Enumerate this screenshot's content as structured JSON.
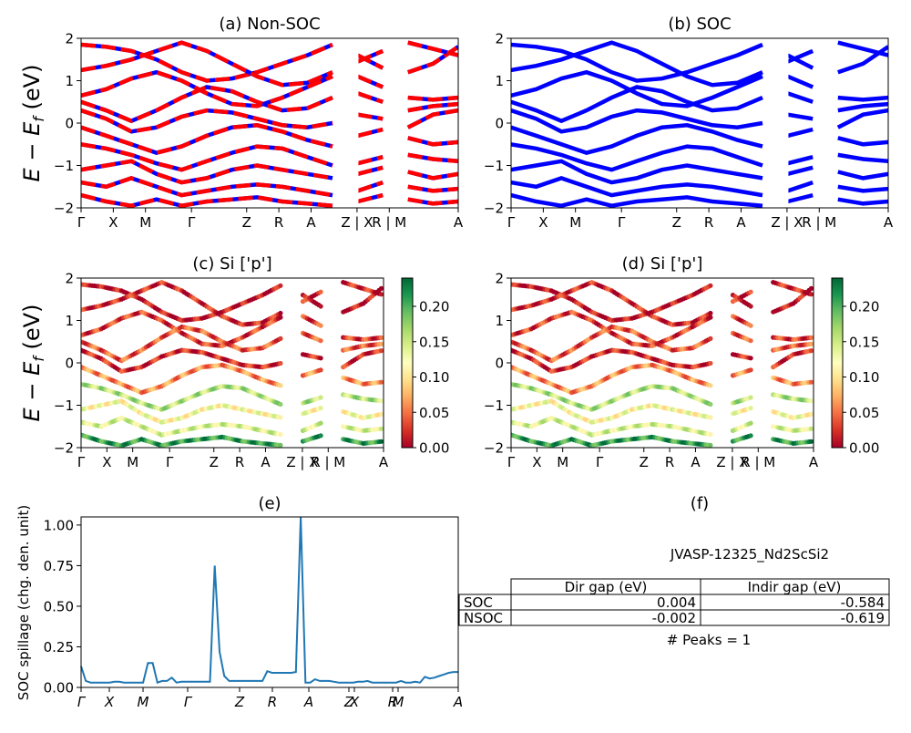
{
  "panels": {
    "a": {
      "title": "(a) Non-SOC",
      "ylabel": "$E-E_f$ (eV)"
    },
    "b": {
      "title": "(b) SOC"
    },
    "c": {
      "title": "(c)  Si ['p']",
      "ylabel": "$E-E_f$ (eV)"
    },
    "d": {
      "title": "(d) Si ['p']"
    },
    "e": {
      "title": "(e)",
      "ylabel": "SOC spillage (chg. den. unit)"
    },
    "f": {
      "title": "(f)",
      "material": "JVASP-12325_Nd2ScSi2",
      "table": {
        "headers": [
          "Dir gap (eV)",
          "Indir gap (eV)"
        ],
        "rows": [
          {
            "label": "SOC",
            "dir": "0.004",
            "indir": "-0.584"
          },
          {
            "label": "NSOC",
            "dir": "-0.002",
            "indir": "-0.619"
          }
        ]
      },
      "peaks": "# Peaks = 1"
    }
  },
  "chart_data": [
    {
      "panel": "a",
      "type": "line",
      "title": "(a) Non-SOC",
      "ylabel": "$E-E_f$ (eV)",
      "ylim": [
        -2,
        2
      ],
      "yticks": [
        "2",
        "1",
        "0",
        "−1",
        "−2"
      ],
      "xticks": [
        "Γ",
        "X",
        "M",
        "Γ",
        "Z",
        "R",
        "A",
        "Z | X",
        "R | M",
        "A"
      ],
      "colors": {
        "dashed_under": "#0000ff",
        "dashed_over": "#ff0000"
      },
      "series": [
        {
          "values": [
            1.85,
            1.8,
            1.7,
            1.5,
            1.2,
            1.0,
            1.05,
            1.2,
            1.4,
            1.6,
            1.85,
            1.6,
            1.3,
            1.2,
            1.4,
            1.8
          ]
        },
        {
          "values": [
            1.25,
            1.35,
            1.5,
            1.7,
            1.9,
            1.7,
            1.4,
            1.1,
            0.9,
            0.95,
            1.2,
            1.45,
            1.7,
            1.9,
            1.75,
            1.6
          ]
        },
        {
          "values": [
            0.65,
            0.8,
            1.05,
            1.2,
            1.0,
            0.7,
            0.45,
            0.4,
            0.6,
            0.85,
            1.1,
            1.1,
            0.85,
            0.6,
            0.55,
            0.6
          ]
        },
        {
          "values": [
            0.5,
            0.3,
            0.05,
            0.3,
            0.6,
            0.85,
            0.75,
            0.5,
            0.3,
            0.35,
            0.6,
            0.7,
            0.5,
            0.3,
            0.4,
            0.45
          ]
        },
        {
          "values": [
            0.3,
            0.1,
            -0.2,
            -0.1,
            0.15,
            0.3,
            0.25,
            0.1,
            -0.05,
            -0.1,
            0.0,
            0.2,
            0.1,
            -0.1,
            0.2,
            0.3
          ]
        },
        {
          "values": [
            -0.1,
            -0.3,
            -0.5,
            -0.7,
            -0.55,
            -0.3,
            -0.1,
            -0.05,
            -0.2,
            -0.4,
            -0.55,
            -0.3,
            -0.15,
            -0.35,
            -0.5,
            -0.45
          ]
        },
        {
          "values": [
            -0.5,
            -0.6,
            -0.75,
            -0.95,
            -1.1,
            -0.9,
            -0.7,
            -0.55,
            -0.6,
            -0.8,
            -1.0,
            -0.95,
            -0.8,
            -0.75,
            -0.85,
            -0.9
          ]
        },
        {
          "values": [
            -1.1,
            -1.0,
            -0.9,
            -1.2,
            -1.4,
            -1.3,
            -1.1,
            -1.0,
            -1.1,
            -1.2,
            -1.3,
            -1.2,
            -1.05,
            -1.15,
            -1.3,
            -1.2
          ]
        },
        {
          "values": [
            -1.4,
            -1.5,
            -1.3,
            -1.5,
            -1.7,
            -1.6,
            -1.5,
            -1.45,
            -1.5,
            -1.6,
            -1.7,
            -1.6,
            -1.4,
            -1.5,
            -1.6,
            -1.55
          ]
        },
        {
          "values": [
            -1.7,
            -1.85,
            -1.95,
            -1.8,
            -1.95,
            -1.85,
            -1.8,
            -1.75,
            -1.85,
            -1.9,
            -1.95,
            -1.85,
            -1.7,
            -1.8,
            -1.9,
            -1.85
          ]
        }
      ]
    },
    {
      "panel": "b",
      "type": "line",
      "title": "(b) SOC",
      "ylim": [
        -2,
        2
      ],
      "yticks": [
        "2",
        "1",
        "0",
        "−1",
        "−2"
      ],
      "xticks": [
        "Γ",
        "X",
        "M",
        "Γ",
        "Z",
        "R",
        "A",
        "Z | X",
        "R | M",
        "A"
      ],
      "colors": {
        "line": "#0000ff"
      },
      "series": [
        {
          "values": [
            1.85,
            1.8,
            1.7,
            1.5,
            1.2,
            1.0,
            1.05,
            1.2,
            1.4,
            1.6,
            1.85,
            1.6,
            1.3,
            1.2,
            1.4,
            1.8
          ]
        },
        {
          "values": [
            1.25,
            1.35,
            1.5,
            1.7,
            1.9,
            1.7,
            1.4,
            1.1,
            0.9,
            0.95,
            1.2,
            1.45,
            1.7,
            1.9,
            1.75,
            1.6
          ]
        },
        {
          "values": [
            0.65,
            0.8,
            1.05,
            1.2,
            1.0,
            0.7,
            0.45,
            0.4,
            0.6,
            0.85,
            1.1,
            1.1,
            0.85,
            0.6,
            0.55,
            0.6
          ]
        },
        {
          "values": [
            0.5,
            0.3,
            0.05,
            0.3,
            0.6,
            0.85,
            0.75,
            0.5,
            0.3,
            0.35,
            0.6,
            0.7,
            0.5,
            0.3,
            0.4,
            0.45
          ]
        },
        {
          "values": [
            0.3,
            0.1,
            -0.2,
            -0.1,
            0.15,
            0.3,
            0.25,
            0.1,
            -0.05,
            -0.1,
            0.0,
            0.2,
            0.1,
            -0.1,
            0.2,
            0.3
          ]
        },
        {
          "values": [
            -0.1,
            -0.3,
            -0.5,
            -0.7,
            -0.55,
            -0.3,
            -0.1,
            -0.05,
            -0.2,
            -0.4,
            -0.55,
            -0.3,
            -0.15,
            -0.35,
            -0.5,
            -0.45
          ]
        },
        {
          "values": [
            -0.5,
            -0.6,
            -0.75,
            -0.95,
            -1.1,
            -0.9,
            -0.7,
            -0.55,
            -0.6,
            -0.8,
            -1.0,
            -0.95,
            -0.8,
            -0.75,
            -0.85,
            -0.9
          ]
        },
        {
          "values": [
            -1.1,
            -1.0,
            -0.9,
            -1.2,
            -1.4,
            -1.3,
            -1.1,
            -1.0,
            -1.1,
            -1.2,
            -1.3,
            -1.2,
            -1.05,
            -1.15,
            -1.3,
            -1.2
          ]
        },
        {
          "values": [
            -1.4,
            -1.5,
            -1.3,
            -1.5,
            -1.7,
            -1.6,
            -1.5,
            -1.45,
            -1.5,
            -1.6,
            -1.7,
            -1.6,
            -1.4,
            -1.5,
            -1.6,
            -1.55
          ]
        },
        {
          "values": [
            -1.7,
            -1.85,
            -1.95,
            -1.8,
            -1.95,
            -1.85,
            -1.8,
            -1.75,
            -1.85,
            -1.9,
            -1.95,
            -1.85,
            -1.7,
            -1.8,
            -1.9,
            -1.85
          ]
        }
      ]
    },
    {
      "panel": "c",
      "type": "scatter",
      "title": "(c)  Si ['p']",
      "ylabel": "$E-E_f$ (eV)",
      "ylim": [
        -2,
        2
      ],
      "yticks": [
        "2",
        "1",
        "0",
        "−1",
        "−2"
      ],
      "xticks": [
        "Γ",
        "X",
        "M",
        "Γ",
        "Z",
        "R",
        "A",
        "Z | X",
        "R | M",
        "A"
      ],
      "colorbar": {
        "colormap": "RdYlGn",
        "range": [
          0.0,
          0.24
        ],
        "ticks": [
          "0.20",
          "0.15",
          "0.10",
          "0.05",
          "0.00"
        ]
      },
      "series": [
        {
          "values": [
            1.85,
            1.8,
            1.7,
            1.5,
            1.2,
            1.0,
            1.05,
            1.2,
            1.4,
            1.6,
            1.85,
            1.6,
            1.3,
            1.2,
            1.4,
            1.8
          ],
          "weight": 0.01
        },
        {
          "values": [
            1.25,
            1.35,
            1.5,
            1.7,
            1.9,
            1.7,
            1.4,
            1.1,
            0.9,
            0.95,
            1.2,
            1.45,
            1.7,
            1.9,
            1.75,
            1.6
          ],
          "weight": 0.02
        },
        {
          "values": [
            0.65,
            0.8,
            1.05,
            1.2,
            1.0,
            0.7,
            0.45,
            0.4,
            0.6,
            0.85,
            1.1,
            1.1,
            0.85,
            0.6,
            0.55,
            0.6
          ],
          "weight": 0.03
        },
        {
          "values": [
            0.5,
            0.3,
            0.05,
            0.3,
            0.6,
            0.85,
            0.75,
            0.5,
            0.3,
            0.35,
            0.6,
            0.7,
            0.5,
            0.3,
            0.4,
            0.45
          ],
          "weight": 0.04
        },
        {
          "values": [
            0.3,
            0.1,
            -0.2,
            -0.1,
            0.15,
            0.3,
            0.25,
            0.1,
            -0.05,
            -0.1,
            0.0,
            0.2,
            0.1,
            -0.1,
            0.2,
            0.3
          ],
          "weight": 0.02
        },
        {
          "values": [
            -0.1,
            -0.3,
            -0.5,
            -0.7,
            -0.55,
            -0.3,
            -0.1,
            -0.05,
            -0.2,
            -0.4,
            -0.55,
            -0.3,
            -0.15,
            -0.35,
            -0.5,
            -0.45
          ],
          "weight": 0.06
        },
        {
          "values": [
            -0.5,
            -0.6,
            -0.75,
            -0.95,
            -1.1,
            -0.9,
            -0.7,
            -0.55,
            -0.6,
            -0.8,
            -1.0,
            -0.95,
            -0.8,
            -0.75,
            -0.85,
            -0.9
          ],
          "weight": 0.16
        },
        {
          "values": [
            -1.1,
            -1.0,
            -0.9,
            -1.2,
            -1.4,
            -1.3,
            -1.1,
            -1.0,
            -1.1,
            -1.2,
            -1.3,
            -1.2,
            -1.05,
            -1.15,
            -1.3,
            -1.2
          ],
          "weight": 0.12
        },
        {
          "values": [
            -1.4,
            -1.5,
            -1.3,
            -1.5,
            -1.7,
            -1.6,
            -1.5,
            -1.45,
            -1.5,
            -1.6,
            -1.7,
            -1.6,
            -1.4,
            -1.5,
            -1.6,
            -1.55
          ],
          "weight": 0.14
        },
        {
          "values": [
            -1.7,
            -1.85,
            -1.95,
            -1.8,
            -1.95,
            -1.85,
            -1.8,
            -1.75,
            -1.85,
            -1.9,
            -1.95,
            -1.85,
            -1.7,
            -1.8,
            -1.9,
            -1.85
          ],
          "weight": 0.21
        }
      ]
    },
    {
      "panel": "d",
      "type": "scatter",
      "title": "(d) Si ['p']",
      "ylim": [
        -2,
        2
      ],
      "yticks": [
        "2",
        "1",
        "0",
        "−1",
        "−2"
      ],
      "xticks": [
        "Γ",
        "X",
        "M",
        "Γ",
        "Z",
        "R",
        "A",
        "Z | X",
        "R | M",
        "A"
      ],
      "colorbar": {
        "colormap": "RdYlGn",
        "range": [
          0.0,
          0.24
        ],
        "ticks": [
          "0.20",
          "0.15",
          "0.10",
          "0.05",
          "0.00"
        ]
      },
      "series": [
        {
          "values": [
            1.85,
            1.8,
            1.7,
            1.5,
            1.2,
            1.0,
            1.05,
            1.2,
            1.4,
            1.6,
            1.85,
            1.6,
            1.3,
            1.2,
            1.4,
            1.8
          ],
          "weight": 0.01
        },
        {
          "values": [
            1.25,
            1.35,
            1.5,
            1.7,
            1.9,
            1.7,
            1.4,
            1.1,
            0.9,
            0.95,
            1.2,
            1.45,
            1.7,
            1.9,
            1.75,
            1.6
          ],
          "weight": 0.02
        },
        {
          "values": [
            0.65,
            0.8,
            1.05,
            1.2,
            1.0,
            0.7,
            0.45,
            0.4,
            0.6,
            0.85,
            1.1,
            1.1,
            0.85,
            0.6,
            0.55,
            0.6
          ],
          "weight": 0.03
        },
        {
          "values": [
            0.5,
            0.3,
            0.05,
            0.3,
            0.6,
            0.85,
            0.75,
            0.5,
            0.3,
            0.35,
            0.6,
            0.7,
            0.5,
            0.3,
            0.4,
            0.45
          ],
          "weight": 0.04
        },
        {
          "values": [
            0.3,
            0.1,
            -0.2,
            -0.1,
            0.15,
            0.3,
            0.25,
            0.1,
            -0.05,
            -0.1,
            0.0,
            0.2,
            0.1,
            -0.1,
            0.2,
            0.3
          ],
          "weight": 0.02
        },
        {
          "values": [
            -0.1,
            -0.3,
            -0.5,
            -0.7,
            -0.55,
            -0.3,
            -0.1,
            -0.05,
            -0.2,
            -0.4,
            -0.55,
            -0.3,
            -0.15,
            -0.35,
            -0.5,
            -0.45
          ],
          "weight": 0.06
        },
        {
          "values": [
            -0.5,
            -0.6,
            -0.75,
            -0.95,
            -1.1,
            -0.9,
            -0.7,
            -0.55,
            -0.6,
            -0.8,
            -1.0,
            -0.95,
            -0.8,
            -0.75,
            -0.85,
            -0.9
          ],
          "weight": 0.16
        },
        {
          "values": [
            -1.1,
            -1.0,
            -0.9,
            -1.2,
            -1.4,
            -1.3,
            -1.1,
            -1.0,
            -1.1,
            -1.2,
            -1.3,
            -1.2,
            -1.05,
            -1.15,
            -1.3,
            -1.2
          ],
          "weight": 0.12
        },
        {
          "values": [
            -1.4,
            -1.5,
            -1.3,
            -1.5,
            -1.7,
            -1.6,
            -1.5,
            -1.45,
            -1.5,
            -1.6,
            -1.7,
            -1.6,
            -1.4,
            -1.5,
            -1.6,
            -1.55
          ],
          "weight": 0.14
        },
        {
          "values": [
            -1.7,
            -1.85,
            -1.95,
            -1.8,
            -1.95,
            -1.85,
            -1.8,
            -1.75,
            -1.85,
            -1.9,
            -1.95,
            -1.85,
            -1.7,
            -1.8,
            -1.9,
            -1.85
          ],
          "weight": 0.21
        }
      ]
    },
    {
      "panel": "e",
      "type": "line",
      "title": "(e)",
      "ylabel": "SOC spillage (chg. den. unit)",
      "ylim": [
        0,
        1.05
      ],
      "yticks": [
        "1.00",
        "0.75",
        "0.50",
        "0.25",
        "0.00"
      ],
      "xticks": [
        "Γ",
        "X",
        "M",
        "Γ",
        "Z",
        "R",
        "A",
        "Z",
        "X",
        "R",
        "M",
        "A"
      ],
      "colors": {
        "line": "#1f77b4"
      },
      "series": [
        {
          "values": [
            0.13,
            0.04,
            0.03,
            0.03,
            0.03,
            0.03,
            0.03,
            0.035,
            0.035,
            0.03,
            0.03,
            0.03,
            0.03,
            0.03,
            0.15,
            0.15,
            0.03,
            0.04,
            0.04,
            0.06,
            0.03,
            0.035,
            0.035,
            0.035,
            0.035,
            0.035,
            0.035,
            0.035,
            0.75,
            0.22,
            0.07,
            0.04,
            0.04,
            0.04,
            0.04,
            0.04,
            0.04,
            0.04,
            0.04,
            0.1,
            0.09,
            0.09,
            0.09,
            0.09,
            0.09,
            0.095,
            1.05,
            0.03,
            0.03,
            0.05,
            0.04,
            0.04,
            0.04,
            0.035,
            0.03,
            0.03,
            0.03,
            0.03,
            0.035,
            0.035,
            0.04,
            0.03,
            0.03,
            0.03,
            0.03,
            0.03,
            0.03,
            0.04,
            0.03,
            0.03,
            0.035,
            0.03,
            0.065,
            0.055,
            0.06,
            0.07,
            0.08,
            0.09,
            0.095,
            0.095
          ]
        }
      ]
    }
  ]
}
